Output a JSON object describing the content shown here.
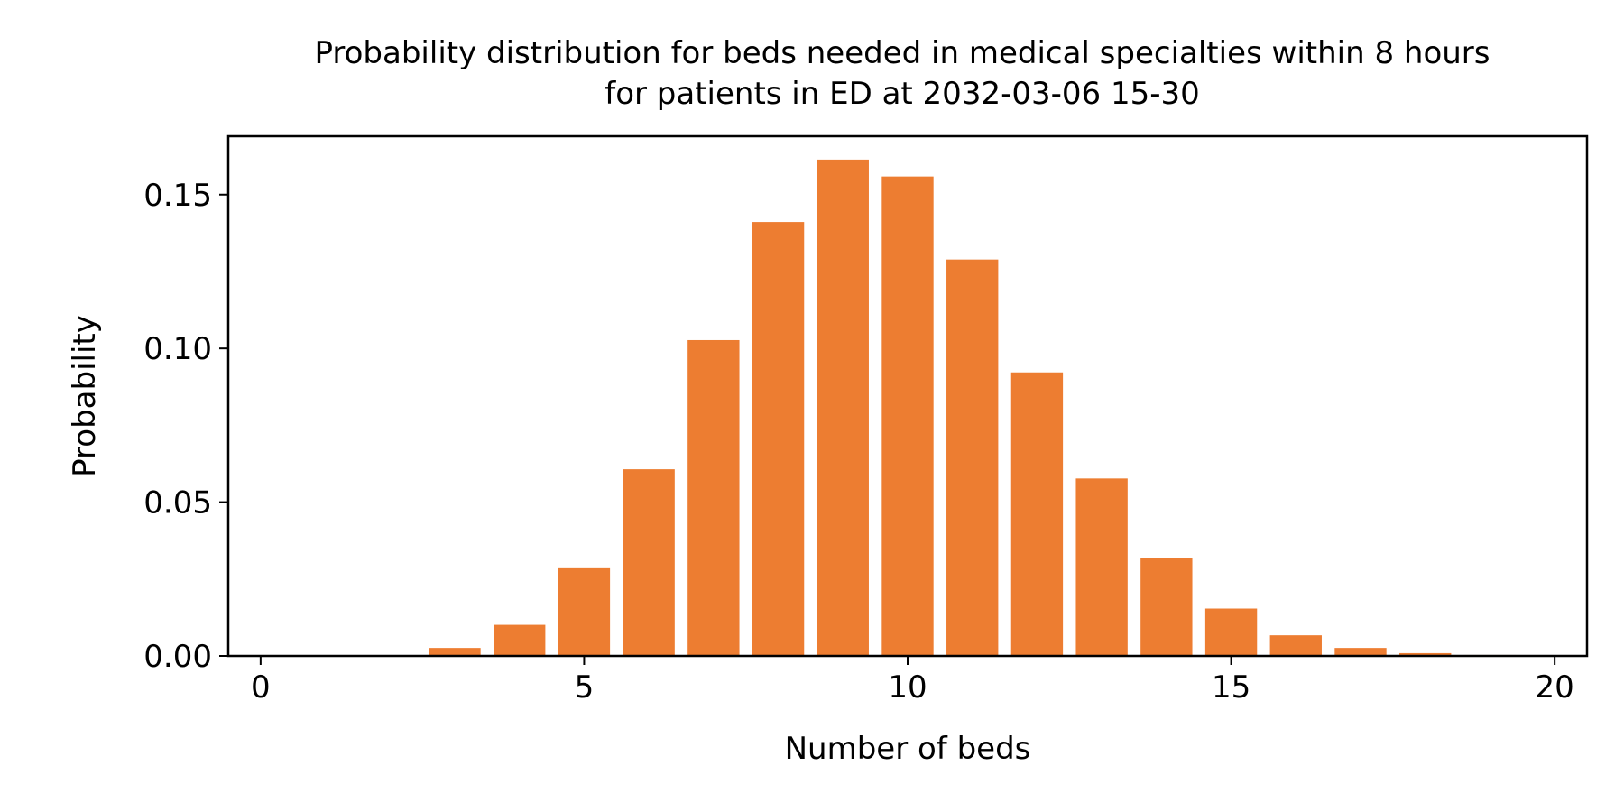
{
  "chart_data": {
    "type": "bar",
    "title": "Probability distribution for beds needed in medical specialties within 8 hours",
    "subtitle": "for patients in ED at 2032-03-06 15-30",
    "xlabel": "Number of beds",
    "ylabel": "Probability",
    "categories": [
      0,
      1,
      2,
      3,
      4,
      5,
      6,
      7,
      8,
      9,
      10,
      11,
      12,
      13,
      14,
      15,
      16,
      17,
      18,
      19,
      20
    ],
    "values": [
      0.0,
      0.0,
      0.0,
      0.0026,
      0.0101,
      0.0285,
      0.0607,
      0.1027,
      0.1411,
      0.1614,
      0.1559,
      0.1289,
      0.0922,
      0.0577,
      0.0318,
      0.0154,
      0.0067,
      0.0026,
      0.0009,
      0.0003,
      0.0001
    ],
    "xlim": [
      -0.5,
      20.5
    ],
    "ylim": [
      0,
      0.169
    ],
    "xticks": [
      0,
      5,
      10,
      15,
      20
    ],
    "xtick_labels": [
      "0",
      "5",
      "10",
      "15",
      "20"
    ],
    "yticks": [
      0,
      0.05,
      0.1,
      0.15
    ],
    "ytick_labels": [
      "0.00",
      "0.05",
      "0.10",
      "0.15"
    ],
    "bar_color": "#ED7D31",
    "grid": false,
    "legend": "none"
  }
}
